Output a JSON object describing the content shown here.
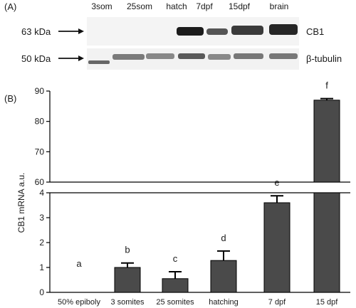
{
  "panel_a": {
    "label": "(A)",
    "lanes": [
      "3som",
      "25som",
      "hatch",
      "7dpf",
      "15dpf",
      "brain"
    ],
    "markers": [
      {
        "label": "63 kDa",
        "blot": "CB1"
      },
      {
        "label": "50 kDa",
        "blot": "β-tubulin"
      }
    ]
  },
  "panel_b": {
    "label": "(B)"
  },
  "chart_data": {
    "type": "bar",
    "categories": [
      "50% epiboly",
      "3 somites",
      "25 somites",
      "hatching",
      "7 dpf",
      "15 dpf"
    ],
    "values": [
      0,
      1.0,
      0.55,
      1.28,
      3.6,
      87
    ],
    "errors": [
      0,
      0.18,
      0.28,
      0.38,
      0.28,
      0.5
    ],
    "significance_letters": [
      "a",
      "b",
      "c",
      "d",
      "e",
      "f"
    ],
    "ylabel": "CB1 mRNA a.u.",
    "xlabel": "",
    "y_axis_break": true,
    "ylim_lower": [
      0,
      4
    ],
    "ylim_upper": [
      60,
      90
    ],
    "yticks_lower": [
      0,
      1,
      2,
      3,
      4
    ],
    "yticks_upper": [
      60,
      70,
      80,
      90
    ],
    "bar_color": "#4a4a4a"
  }
}
